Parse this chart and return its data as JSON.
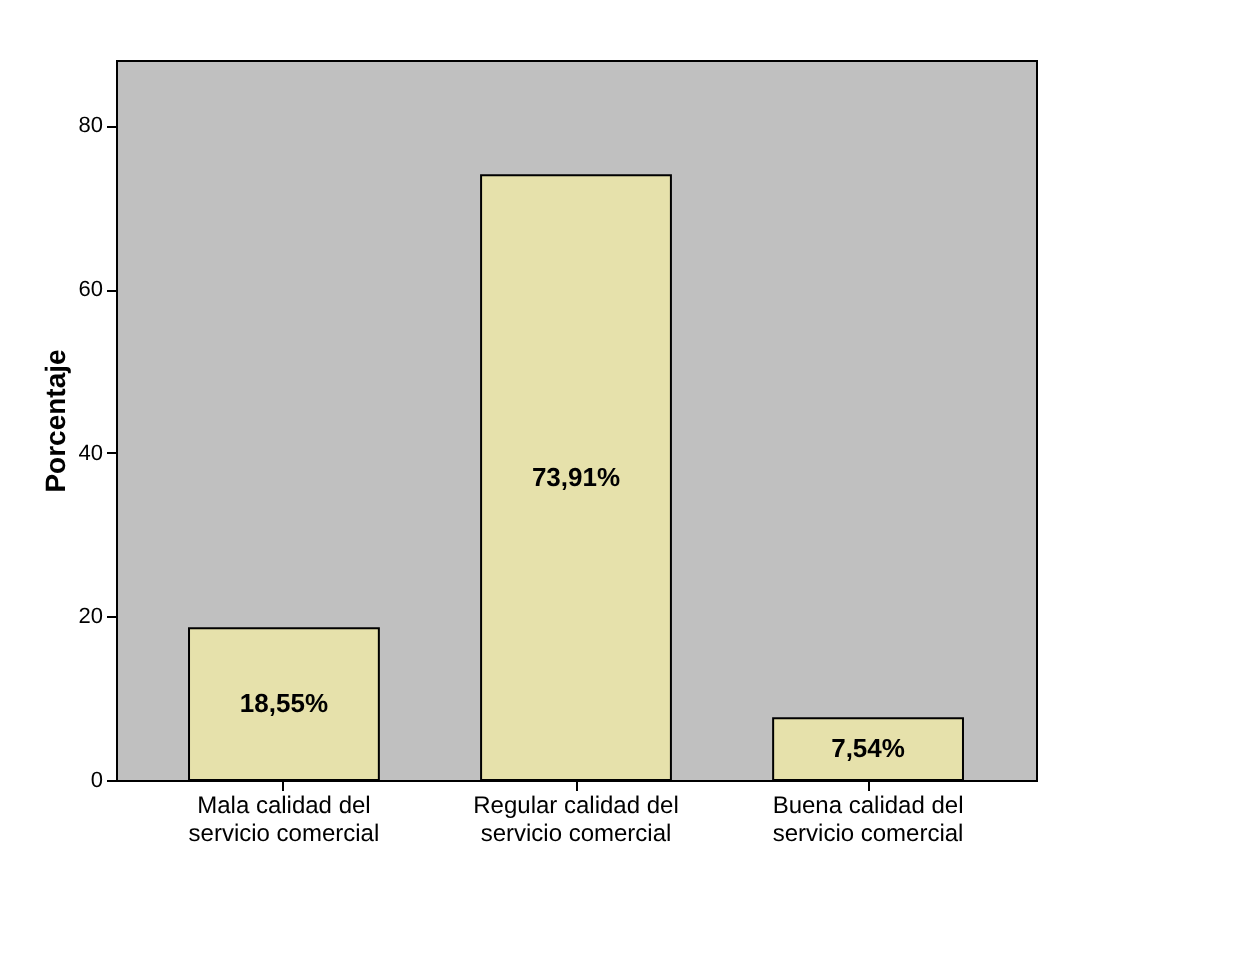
{
  "chart_data": {
    "type": "bar",
    "ylabel": "Porcentaje",
    "categories": [
      "Mala calidad del servicio comercial",
      "Regular calidad del servicio comercial",
      "Buena calidad del servicio comercial"
    ],
    "values": [
      18.55,
      73.91,
      7.54
    ],
    "value_labels": [
      "18,55%",
      "73,91%",
      "7,54%"
    ],
    "color": "#e6e1ab",
    "ylim": [
      0,
      88
    ],
    "yticks": [
      0,
      20,
      40,
      60,
      80
    ],
    "grid": false
  }
}
